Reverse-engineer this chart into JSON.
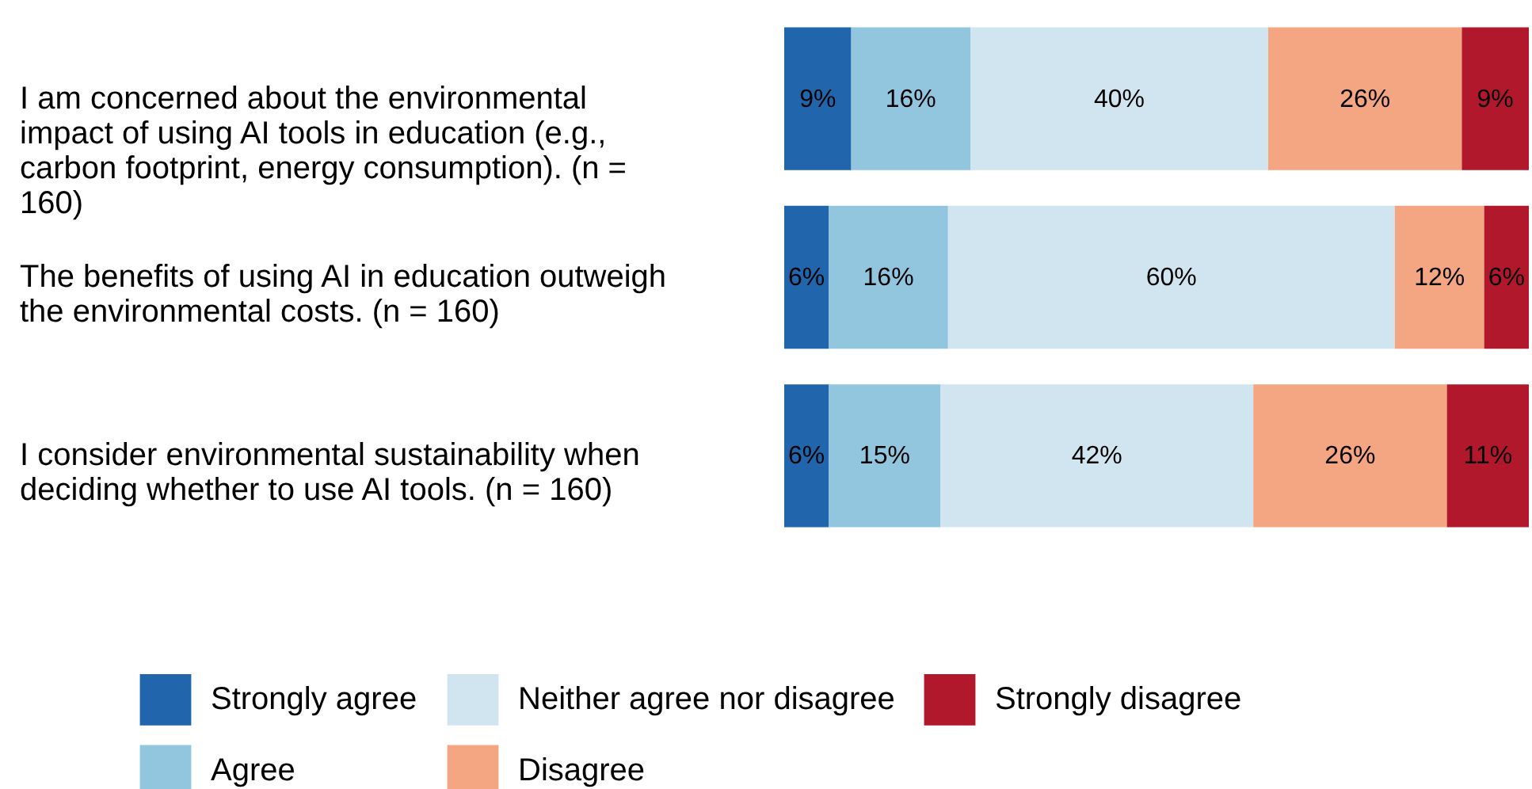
{
  "chart_data": {
    "type": "bar",
    "orientation": "horizontal",
    "stacked": true,
    "legend": "bottom",
    "categories": [
      "I am concerned about the environmental impact of using AI tools in education (e.g., carbon footprint, energy consumption). (n = 160)",
      "The benefits of using AI in education outweigh the environmental costs. (n = 160)",
      "I consider environmental sustainability when deciding whether to use AI tools. (n = 160)"
    ],
    "series": [
      {
        "name": "Strongly agree",
        "color": "#2166ac",
        "values": [
          9,
          6,
          6
        ],
        "value_labels": [
          "9%",
          "6%",
          "6%"
        ]
      },
      {
        "name": "Agree",
        "color": "#92c5de",
        "values": [
          16,
          16,
          15
        ],
        "value_labels": [
          "16%",
          "16%",
          "15%"
        ]
      },
      {
        "name": "Neither agree nor disagree",
        "color": "#d1e5f0",
        "values": [
          40,
          60,
          42
        ],
        "value_labels": [
          "40%",
          "60%",
          "42%"
        ]
      },
      {
        "name": "Disagree",
        "color": "#f4a582",
        "values": [
          26,
          12,
          26
        ],
        "value_labels": [
          "26%",
          "12%",
          "26%"
        ]
      },
      {
        "name": "Strongly disagree",
        "color": "#b2182b",
        "values": [
          9,
          6,
          11
        ],
        "value_labels": [
          "9%",
          "6%",
          "11%"
        ]
      }
    ]
  }
}
